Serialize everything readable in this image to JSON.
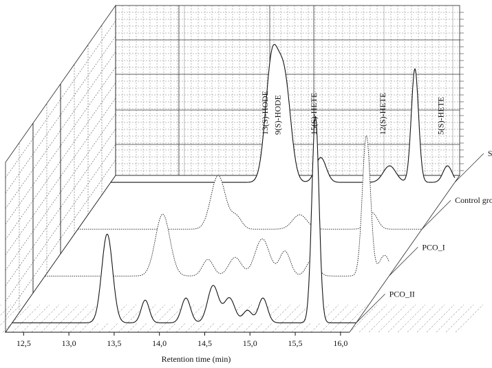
{
  "chart_data": {
    "type": "line",
    "style": "3d-waterfall chromatogram",
    "xlabel": "Retention time (min)",
    "x_ticks": [
      "12,5",
      "13,0",
      "13,5",
      "14,0",
      "14,5",
      "15,0",
      "15,5",
      "16,0"
    ],
    "xlim": [
      12.3,
      16.1
    ],
    "grid": true,
    "legend": "series labels at right end of each trace",
    "peak_labels": [
      {
        "text": "13(S)-HODE",
        "x": 14.08
      },
      {
        "text": "9(S)-HODE",
        "x": 14.22
      },
      {
        "text": "15(S)-HETE",
        "x": 14.62
      },
      {
        "text": "12(S)-HETE",
        "x": 15.38
      },
      {
        "text": "5(S)-HETE",
        "x": 16.02
      }
    ],
    "series": [
      {
        "name": "Standard",
        "line_style": "solid",
        "peaks": [
          {
            "x": 14.08,
            "height": 0.58,
            "width": 0.07
          },
          {
            "x": 14.22,
            "height": 0.48,
            "width": 0.07
          },
          {
            "x": 14.62,
            "height": 0.12,
            "width": 0.06
          },
          {
            "x": 15.38,
            "height": 0.08,
            "width": 0.07
          },
          {
            "x": 15.66,
            "height": 0.55,
            "width": 0.04
          },
          {
            "x": 16.02,
            "height": 0.08,
            "width": 0.05
          }
        ]
      },
      {
        "name": "Control group",
        "line_style": "dotted",
        "peaks": [
          {
            "x": 13.85,
            "height": 0.26,
            "width": 0.08
          },
          {
            "x": 14.05,
            "height": 0.06,
            "width": 0.06
          },
          {
            "x": 14.75,
            "height": 0.07,
            "width": 0.08
          },
          {
            "x": 15.55,
            "height": 0.08,
            "width": 0.06
          },
          {
            "x": 16.35,
            "height": 1.0,
            "width": 0.045
          },
          {
            "x": 16.48,
            "height": 0.12,
            "width": 0.05
          }
        ]
      },
      {
        "name": "PCO_I",
        "line_style": "dotted",
        "peaks": [
          {
            "x": 13.6,
            "height": 0.3,
            "width": 0.08
          },
          {
            "x": 14.1,
            "height": 0.08,
            "width": 0.06
          },
          {
            "x": 14.4,
            "height": 0.09,
            "width": 0.07
          },
          {
            "x": 14.7,
            "height": 0.18,
            "width": 0.08
          },
          {
            "x": 14.95,
            "height": 0.12,
            "width": 0.06
          },
          {
            "x": 15.25,
            "height": 0.08,
            "width": 0.06
          },
          {
            "x": 15.85,
            "height": 0.68,
            "width": 0.045
          },
          {
            "x": 16.05,
            "height": 0.1,
            "width": 0.06
          }
        ]
      },
      {
        "name": "PCO_II",
        "line_style": "solid",
        "peaks": [
          {
            "x": 13.35,
            "height": 0.43,
            "width": 0.06
          },
          {
            "x": 13.77,
            "height": 0.11,
            "width": 0.045
          },
          {
            "x": 14.22,
            "height": 0.12,
            "width": 0.05
          },
          {
            "x": 14.52,
            "height": 0.18,
            "width": 0.06
          },
          {
            "x": 14.7,
            "height": 0.12,
            "width": 0.06
          },
          {
            "x": 14.9,
            "height": 0.06,
            "width": 0.05
          },
          {
            "x": 15.07,
            "height": 0.12,
            "width": 0.05
          },
          {
            "x": 15.65,
            "height": 1.0,
            "width": 0.04
          }
        ]
      }
    ]
  }
}
